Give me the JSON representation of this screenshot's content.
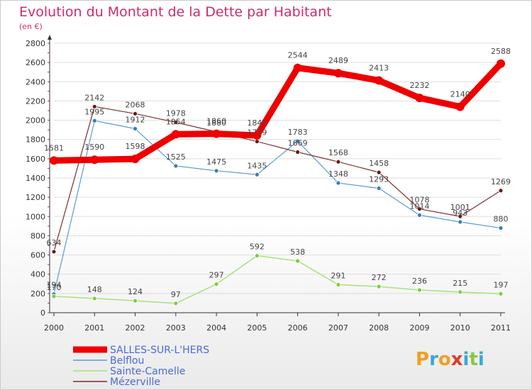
{
  "header": {
    "title": "Evolution du Montant de la Dette par Habitant",
    "subtitle": "(en €)"
  },
  "brand": {
    "letters": [
      "P",
      "r",
      "o",
      "x",
      "i",
      "t",
      "i"
    ],
    "colors": [
      "#f0a020",
      "#39a8d6",
      "#f0a020",
      "#e03a2a",
      "#39a8d6",
      "#8cc63f",
      "#39a8d6"
    ]
  },
  "colors": {
    "title": "#d12a6a",
    "subtitle": "#d12a6a",
    "legend_text": "#4a6bd6",
    "axis": "#333333",
    "grid": "#dddddd"
  },
  "chart_data": {
    "type": "line",
    "x": [
      "2000",
      "2001",
      "2002",
      "2003",
      "2004",
      "2005",
      "2006",
      "2007",
      "2008",
      "2009",
      "2010",
      "2011"
    ],
    "ylim": [
      0,
      2800
    ],
    "yticks": [
      0,
      200,
      400,
      600,
      800,
      1000,
      1200,
      1400,
      1600,
      1800,
      2000,
      2200,
      2400,
      2600,
      2800
    ],
    "grid": "horizontal",
    "legend_position": "bottom-left",
    "series": [
      {
        "name": "SALLES-SUR-L'HERS",
        "color": "#ee0000",
        "width": 9,
        "marker": "#ee0000",
        "marker_r": 6,
        "values": [
          1581,
          1590,
          1598,
          1854,
          1860,
          1842,
          2544,
          2489,
          2413,
          2232,
          2140,
          2588
        ]
      },
      {
        "name": "Belflou",
        "color": "#5b9bd5",
        "width": 1.2,
        "marker": "#3a7cc0",
        "marker_r": 3,
        "values": [
          194,
          1995,
          1912,
          1525,
          1475,
          1435,
          1783,
          1348,
          1293,
          1014,
          943,
          880
        ]
      },
      {
        "name": "Sainte-Camelle",
        "color": "#a6e27a",
        "width": 1.5,
        "marker": "#7ccd3a",
        "marker_r": 3,
        "values": [
          170,
          148,
          124,
          97,
          297,
          592,
          538,
          291,
          272,
          236,
          215,
          197
        ]
      },
      {
        "name": "Mézerville",
        "color": "#7b2e2e",
        "width": 1.2,
        "marker": "#6a1a1a",
        "marker_r": 3,
        "values": [
          634,
          2142,
          2068,
          1978,
          1880,
          1779,
          1669,
          1568,
          1458,
          1078,
          1001,
          1269
        ]
      }
    ]
  }
}
